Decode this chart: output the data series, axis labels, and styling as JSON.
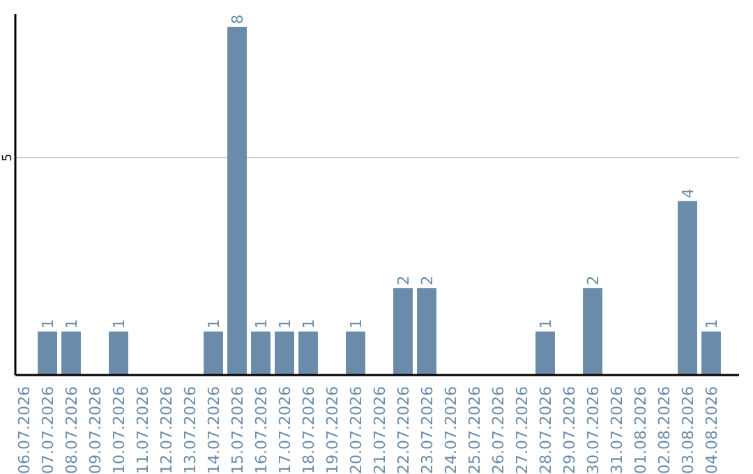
{
  "chart_data": {
    "type": "bar",
    "categories": [
      "06.07.2026",
      "07.07.2026",
      "08.07.2026",
      "09.07.2026",
      "10.07.2026",
      "11.07.2026",
      "12.07.2026",
      "13.07.2026",
      "14.07.2026",
      "15.07.2026",
      "16.07.2026",
      "17.07.2026",
      "18.07.2026",
      "19.07.2026",
      "20.07.2026",
      "21.07.2026",
      "22.07.2026",
      "23.07.2026",
      "24.07.2026",
      "25.07.2026",
      "26.07.2026",
      "27.07.2026",
      "28.07.2026",
      "29.07.2026",
      "30.07.2026",
      "31.07.2026",
      "01.08.2026",
      "02.08.2026",
      "03.08.2026",
      "04.08.2026"
    ],
    "values": [
      null,
      1,
      1,
      null,
      1,
      null,
      null,
      null,
      1,
      8,
      1,
      1,
      1,
      null,
      1,
      null,
      2,
      2,
      null,
      null,
      null,
      null,
      1,
      null,
      2,
      null,
      null,
      null,
      4,
      1
    ],
    "color": "#6a8caa",
    "ylim": [
      0,
      8.3
    ],
    "yticks": [
      5
    ],
    "grid": "y",
    "data_labels": true
  }
}
